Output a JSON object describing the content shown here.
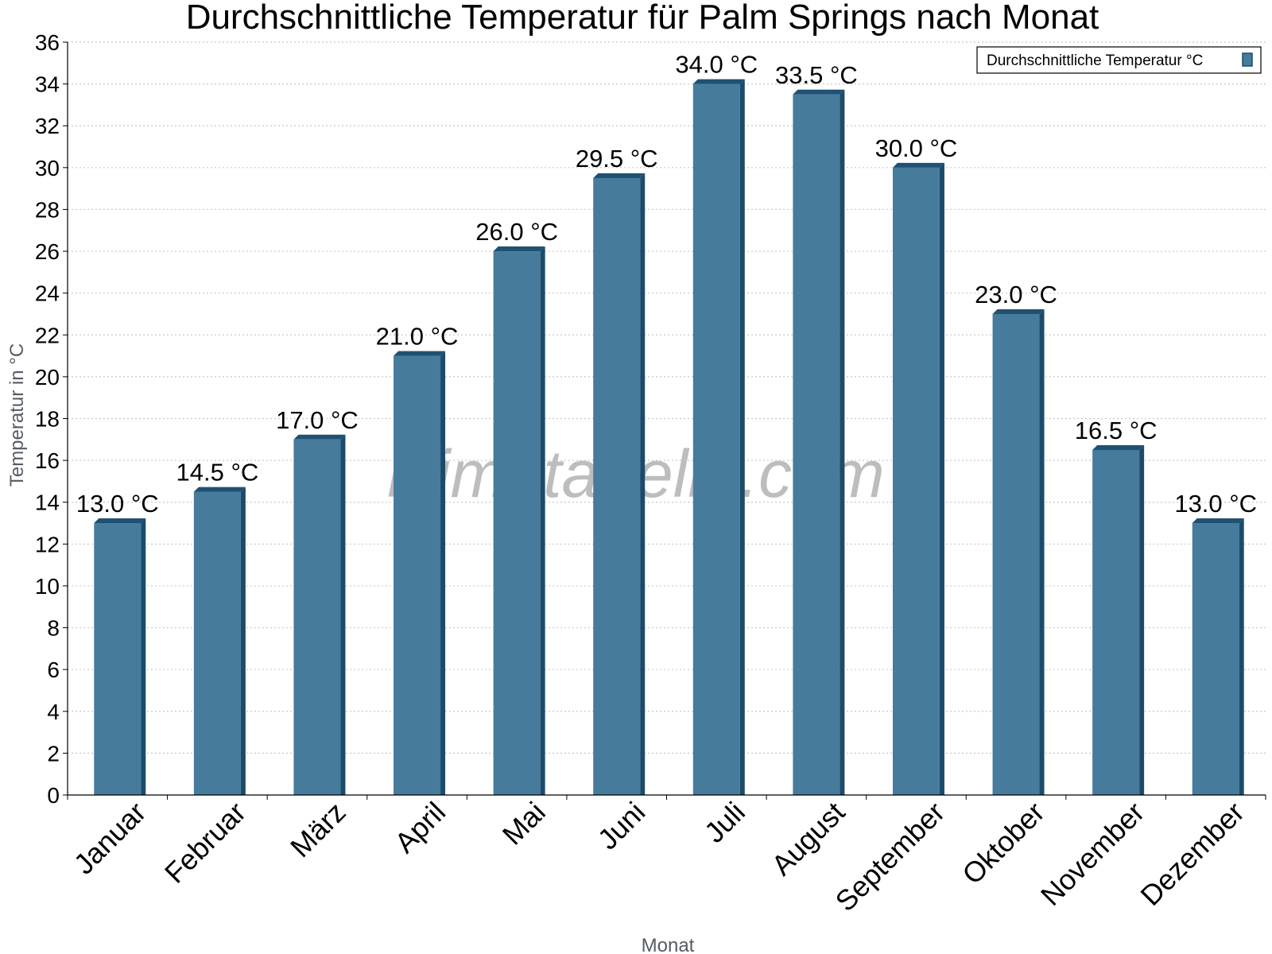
{
  "chart_data": {
    "type": "bar",
    "title": "Durchschnittliche Temperatur für Palm Springs nach Monat",
    "xlabel": "Monat",
    "ylabel": "Temperatur in °C",
    "categories": [
      "Januar",
      "Februar",
      "März",
      "April",
      "Mai",
      "Juni",
      "Juli",
      "August",
      "September",
      "Oktober",
      "November",
      "Dezember"
    ],
    "series": [
      {
        "name": "Durchschnittliche Temperatur °C",
        "values": [
          13.0,
          14.5,
          17.0,
          21.0,
          26.0,
          29.5,
          34.0,
          33.5,
          30.0,
          23.0,
          16.5,
          13.0
        ],
        "labels": [
          "13.0 °C",
          "14.5 °C",
          "17.0 °C",
          "21.0 °C",
          "26.0 °C",
          "29.5 °C",
          "34.0 °C",
          "33.5 °C",
          "30.0 °C",
          "23.0 °C",
          "16.5 °C",
          "13.0 °C"
        ]
      }
    ],
    "ylim": [
      0,
      36
    ],
    "yticks": [
      "0",
      "2",
      "4",
      "6",
      "8",
      "10",
      "12",
      "14",
      "16",
      "18",
      "20",
      "22",
      "24",
      "26",
      "28",
      "30",
      "32",
      "34",
      "36"
    ],
    "grid": true,
    "legend_position": "top-right",
    "watermark": "klimatabelle.com",
    "colors": {
      "bar_face": "#467b9c",
      "bar_side": "#1c4b6a",
      "bar_top": "#1f5173",
      "grid": "#c8c8c8",
      "axis": "#000000"
    }
  }
}
